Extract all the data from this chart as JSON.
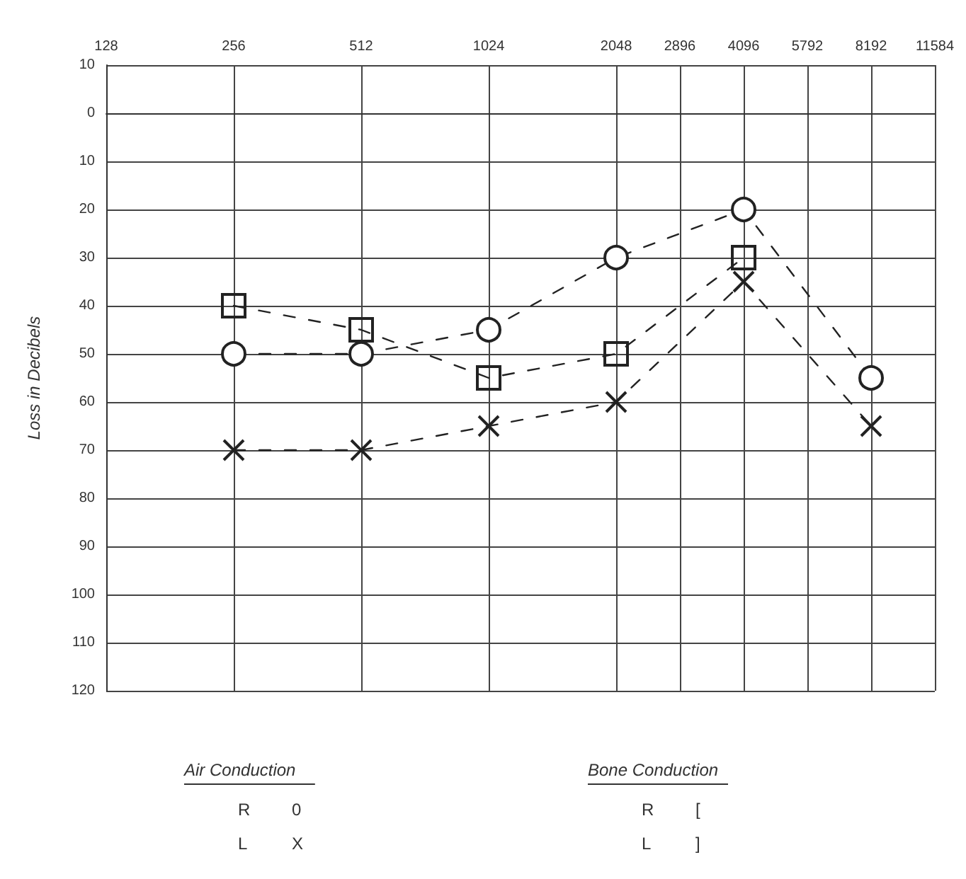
{
  "chart_data": {
    "type": "line",
    "ylabel": "Loss in Decibels",
    "log": "x",
    "grid": true,
    "line_style": "dashed",
    "xlim": [
      128,
      11584
    ],
    "xticks": [
      128,
      256,
      512,
      1024,
      2048,
      2896,
      4096,
      5792,
      8192,
      11584
    ],
    "ylim": [
      120,
      -10
    ],
    "yticks": [
      {
        "value": -10,
        "label": "10"
      },
      0,
      10,
      20,
      30,
      40,
      50,
      60,
      70,
      80,
      90,
      100,
      110,
      120
    ],
    "series": [
      {
        "color": "#222222",
        "marker": "circle",
        "x": [
          256,
          512,
          1024,
          2048,
          4096,
          8192
        ],
        "values": [
          50,
          50,
          45,
          30,
          20,
          55
        ]
      },
      {
        "color": "#222222",
        "marker": "cross",
        "x": [
          256,
          512,
          1024,
          2048,
          4096,
          8192
        ],
        "values": [
          70,
          70,
          65,
          60,
          35,
          65
        ]
      },
      {
        "color": "#222222",
        "marker": "square",
        "x": [
          256,
          512,
          1024,
          2048,
          4096
        ],
        "values": [
          40,
          45,
          55,
          50,
          30
        ]
      }
    ],
    "annotations": [
      "Air Conduction",
      "R",
      "0",
      "L",
      "X",
      "Bone Conduction",
      "R",
      "[",
      "L",
      "]"
    ]
  }
}
